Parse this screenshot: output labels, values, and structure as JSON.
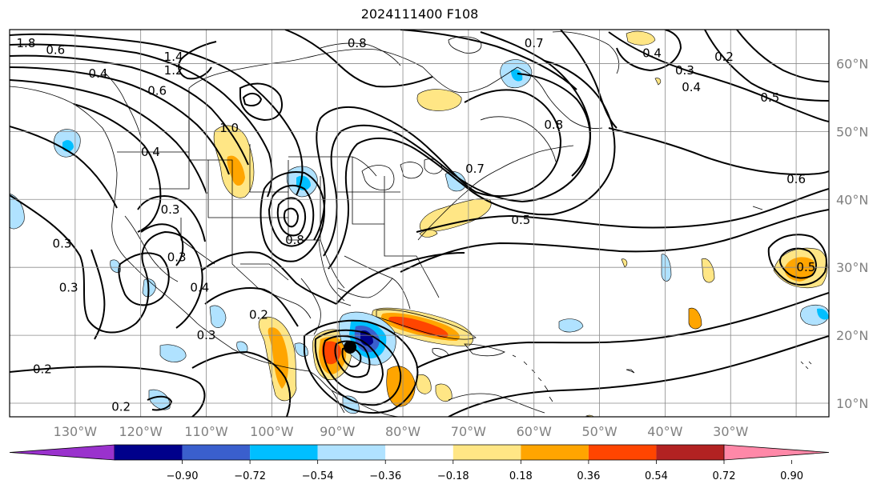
{
  "title": "2024111400 F108",
  "map": {
    "lon_range": [
      -140,
      -15
    ],
    "lat_range": [
      8,
      65
    ],
    "lat_ticks": [
      {
        "lat": 60,
        "label": "60°N"
      },
      {
        "lat": 50,
        "label": "50°N"
      },
      {
        "lat": 40,
        "label": "40°N"
      },
      {
        "lat": 30,
        "label": "30°N"
      },
      {
        "lat": 20,
        "label": "20°N"
      },
      {
        "lat": 10,
        "label": "10°N"
      }
    ],
    "lon_ticks": [
      {
        "lon": -130,
        "label": "130°W"
      },
      {
        "lon": -120,
        "label": "120°W"
      },
      {
        "lon": -110,
        "label": "110°W"
      },
      {
        "lon": -100,
        "label": "100°W"
      },
      {
        "lon": -90,
        "label": "90°W"
      },
      {
        "lon": -80,
        "label": "80°W"
      },
      {
        "lon": -70,
        "label": "70°W"
      },
      {
        "lon": -60,
        "label": "60°W"
      },
      {
        "lon": -50,
        "label": "50°W"
      },
      {
        "lon": -40,
        "label": "40°W"
      },
      {
        "lon": -30,
        "label": "30°W"
      }
    ],
    "contour_labels": [
      {
        "text": "1.8",
        "lon": -137.5,
        "lat": 63.0
      },
      {
        "text": "0.6",
        "lon": -133.0,
        "lat": 62.0
      },
      {
        "text": "0.8",
        "lon": -87.0,
        "lat": 63.0
      },
      {
        "text": "0.7",
        "lon": -60.0,
        "lat": 63.0
      },
      {
        "text": "1.4",
        "lon": -115.0,
        "lat": 61.0
      },
      {
        "text": "1.2",
        "lon": -115.0,
        "lat": 59.0
      },
      {
        "text": "0.4",
        "lon": -126.5,
        "lat": 58.5
      },
      {
        "text": "0.6",
        "lon": -117.5,
        "lat": 56.0
      },
      {
        "text": "0.4",
        "lon": -42.0,
        "lat": 61.5
      },
      {
        "text": "0.3",
        "lon": -37.0,
        "lat": 59.0
      },
      {
        "text": "0.2",
        "lon": -31.0,
        "lat": 61.0
      },
      {
        "text": "0.4",
        "lon": -36.0,
        "lat": 56.5
      },
      {
        "text": "0.5",
        "lon": -24.0,
        "lat": 55.0
      },
      {
        "text": "1.0",
        "lon": -106.5,
        "lat": 50.5
      },
      {
        "text": "0.8",
        "lon": -57.0,
        "lat": 51.0
      },
      {
        "text": "0.4",
        "lon": -118.5,
        "lat": 47.0
      },
      {
        "text": "0.7",
        "lon": -69.0,
        "lat": 44.5
      },
      {
        "text": "0.6",
        "lon": -20.0,
        "lat": 43.0
      },
      {
        "text": "0.3",
        "lon": -115.5,
        "lat": 38.5
      },
      {
        "text": "0.5",
        "lon": -62.0,
        "lat": 37.0
      },
      {
        "text": "0.3",
        "lon": -132.0,
        "lat": 33.5
      },
      {
        "text": "0.8",
        "lon": -96.5,
        "lat": 34.0
      },
      {
        "text": "0.3",
        "lon": -114.5,
        "lat": 31.5
      },
      {
        "text": "0.5",
        "lon": -18.5,
        "lat": 30.0
      },
      {
        "text": "0.3",
        "lon": -131.0,
        "lat": 27.0
      },
      {
        "text": "0.4",
        "lon": -111.0,
        "lat": 27.0
      },
      {
        "text": "0.2",
        "lon": -102.0,
        "lat": 23.0
      },
      {
        "text": "0.3",
        "lon": -110.0,
        "lat": 20.0
      },
      {
        "text": "0.2",
        "lon": -135.0,
        "lat": 15.0
      },
      {
        "text": "0.2",
        "lon": -123.0,
        "lat": 9.5
      }
    ]
  },
  "colorbar": {
    "colors": [
      "#9a32cd",
      "#00008b",
      "#3a5fcd",
      "#00bfff",
      "#b0e2ff",
      "#ffffff",
      "#ffe685",
      "#ffa500",
      "#ff4500",
      "#b22222",
      "#ff88a8"
    ],
    "tick_labels": [
      "−0.90",
      "−0.72",
      "−0.54",
      "−0.36",
      "−0.18",
      "0.18",
      "0.36",
      "0.54",
      "0.72",
      "0.90"
    ]
  },
  "shading_colors": {
    "light_blue": "#b0e2ff",
    "blue": "#00bfff",
    "royal_blue": "#3a5fcd",
    "navy": "#00008b",
    "yellow": "#ffe685",
    "orange": "#ffa500",
    "red_orange": "#ff4500",
    "dark_red": "#b22222"
  }
}
